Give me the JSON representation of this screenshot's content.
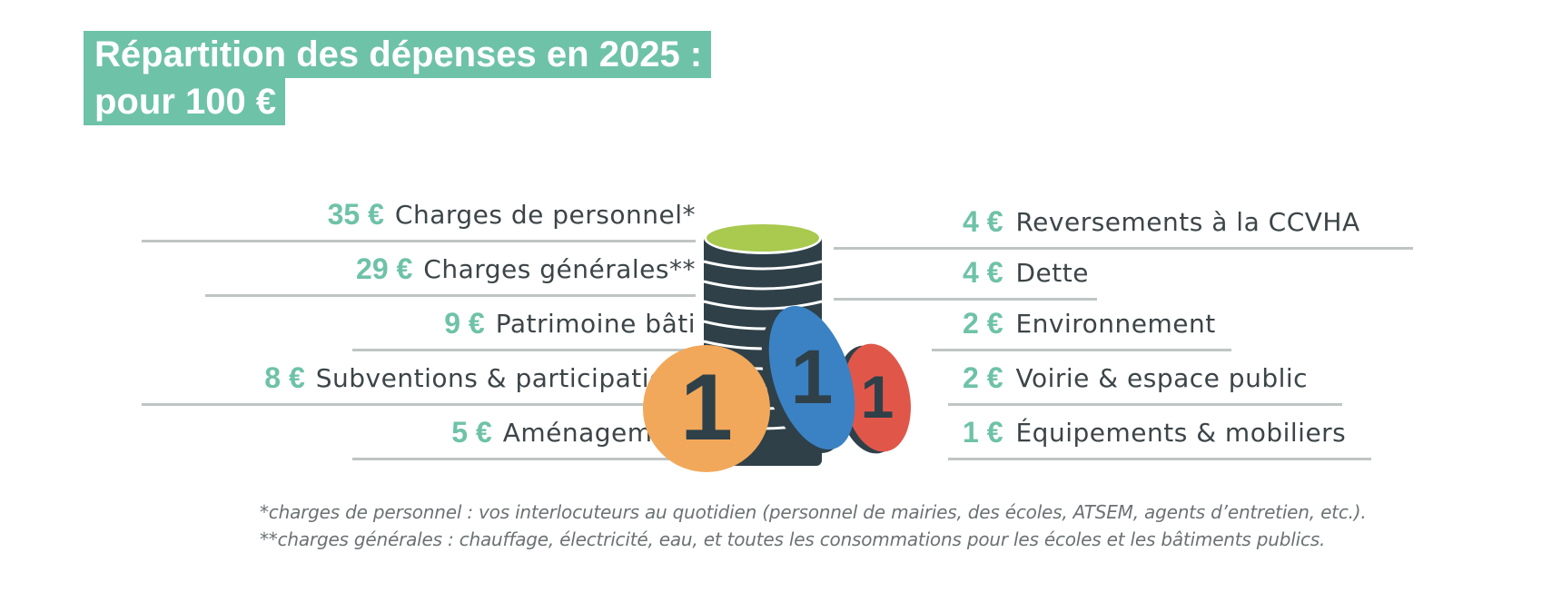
{
  "title": {
    "line1": "Répartition des dépenses en 2025 :",
    "line2": "pour 100 €"
  },
  "left_items": [
    {
      "amount": "35 €",
      "label": "Charges de personnel*",
      "value": 35
    },
    {
      "amount": "29 €",
      "label": "Charges générales**",
      "value": 29
    },
    {
      "amount": "9 €",
      "label": "Patrimoine bâti",
      "value": 9
    },
    {
      "amount": "8 €",
      "label": "Subventions & participations",
      "value": 8
    },
    {
      "amount": "5 €",
      "label": "Aménagement",
      "value": 5
    }
  ],
  "right_items": [
    {
      "amount": "4 €",
      "label": "Reversements à la CCVHA",
      "value": 4
    },
    {
      "amount": "4 €",
      "label": "Dette",
      "value": 4
    },
    {
      "amount": "2 €",
      "label": "Environnement",
      "value": 2
    },
    {
      "amount": "2 €",
      "label": "Voirie & espace public",
      "value": 2
    },
    {
      "amount": "1 €",
      "label": "Équipements & mobiliers",
      "value": 1
    }
  ],
  "footnotes": {
    "f1": "*charges de personnel : vos interlocuteurs au quotidien (personnel de mairies, des écoles, ATSEM, agents d’entretien, etc.).",
    "f2": "**charges générales : chauffage, électricité, eau, et toutes les consommations pour les écoles et les bâtiments publics."
  },
  "coins": {
    "glyph": "1",
    "stack_top_color": "#a9c94f",
    "stack_body_color": "#2f4049",
    "coin_orange": "#f2a85a",
    "coin_blue": "#3a82c4",
    "coin_red": "#e0574a"
  },
  "colors": {
    "accent": "#6ec2a7",
    "text": "#3c4548",
    "rule": "#bfc5c5",
    "footnote": "#6b7274"
  }
}
